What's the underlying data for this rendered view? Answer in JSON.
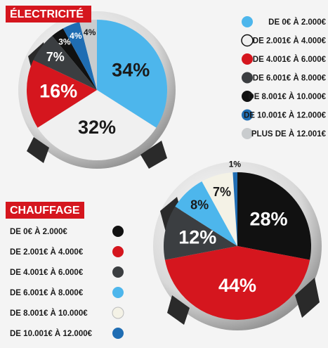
{
  "chart_data": [
    {
      "type": "pie",
      "title": "ÉLECTRICITÉ",
      "categories": [
        "DE 0€ À 2.000€",
        "DE 2.001€ À 4.000€",
        "DE 4.001€ À 6.000€",
        "DE 6.001€ À 8.000€",
        "DE 8.001€ À 10.000€",
        "DE 10.001€ À 12.000€",
        "PLUS DE À 12.001€"
      ],
      "values": [
        34,
        32,
        16,
        7,
        3,
        4,
        4
      ],
      "value_labels": [
        "34%",
        "32%",
        "16%",
        "7%",
        "3%",
        "4%",
        "4%"
      ],
      "colors": [
        "#4db6ec",
        "#f0f0f0",
        "#d5161e",
        "#3b3e41",
        "#111111",
        "#1f6db3",
        "#c9ccce"
      ],
      "legend": "right"
    },
    {
      "type": "pie",
      "title": "CHAUFFAGE",
      "categories": [
        "DE 0€ À 2.000€",
        "DE 2.001€ À 4.000€",
        "DE 4.001€ À 6.000€",
        "DE 6.001€ À 8.000€",
        "DE 8.001€ À 10.000€",
        "DE 10.001€ À 12.000€"
      ],
      "values": [
        28,
        44,
        12,
        8,
        7,
        1
      ],
      "value_labels": [
        "28%",
        "44%",
        "12%",
        "8%",
        "7%",
        "1%"
      ],
      "colors": [
        "#111111",
        "#d5161e",
        "#3b3e41",
        "#4db6ec",
        "#f4f2e6",
        "#1f6db3"
      ],
      "legend": "left"
    }
  ]
}
